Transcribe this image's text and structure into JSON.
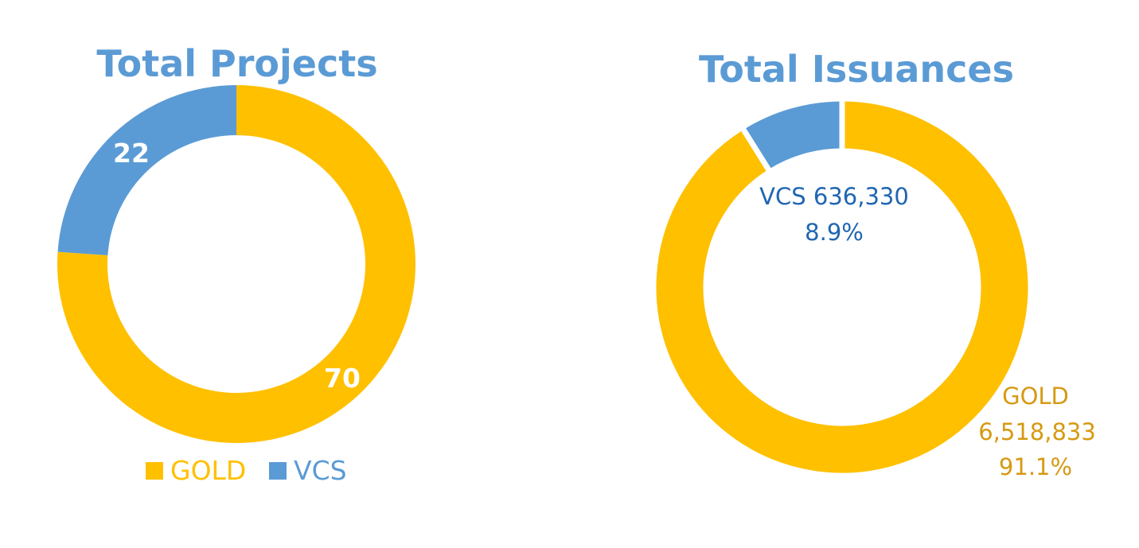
{
  "colors": {
    "gold": "#FFC000",
    "vcs": "#5B9BD5",
    "title": "#5B9BD5",
    "vcs_label": "#1F66B2",
    "gold_label": "#D69A12"
  },
  "chart_data": [
    {
      "type": "pie",
      "variant": "doughnut",
      "title": "Total Projects",
      "legend": {
        "position": "bottom",
        "entries": [
          "GOLD",
          "VCS"
        ]
      },
      "slices": [
        {
          "name": "GOLD",
          "value": 70,
          "label": "70"
        },
        {
          "name": "VCS",
          "value": 22,
          "label": "22"
        }
      ]
    },
    {
      "type": "pie",
      "variant": "doughnut",
      "title": "Total Issuances",
      "legend": null,
      "slices": [
        {
          "name": "GOLD",
          "value": 6518833,
          "label_lines": [
            "GOLD",
            "6,518,833",
            "91.1%"
          ]
        },
        {
          "name": "VCS",
          "value": 636330,
          "label_lines": [
            "VCS 636,330",
            "8.9%"
          ]
        }
      ]
    }
  ]
}
